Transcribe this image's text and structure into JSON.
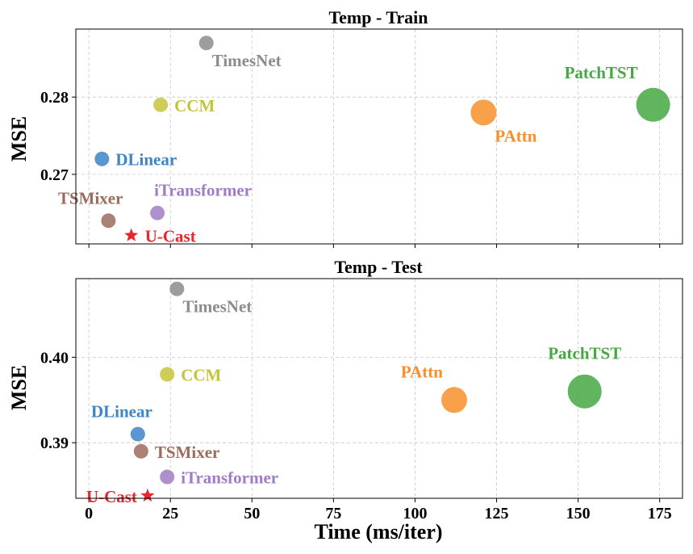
{
  "chart_data": [
    {
      "type": "scatter",
      "title": "Temp - Train",
      "ylabel": "MSE",
      "xlabel": "",
      "xlim": [
        -4,
        182
      ],
      "ylim": [
        0.261,
        0.2888
      ],
      "xticks": [
        0,
        25,
        50,
        75,
        100,
        125,
        150,
        175
      ],
      "yticks": [
        0.27,
        0.28
      ],
      "ytick_labels": [
        "0.27",
        "0.28"
      ],
      "grid": true,
      "points": [
        {
          "name": "TimesNet",
          "x": 36,
          "y": 0.287,
          "size": "small",
          "color": "#8c8c8c",
          "label_pos": "below-right",
          "marker": "circle"
        },
        {
          "name": "CCM",
          "x": 22,
          "y": 0.279,
          "size": "small",
          "color": "#c4c43a",
          "label_pos": "right",
          "marker": "circle"
        },
        {
          "name": "DLinear",
          "x": 4,
          "y": 0.272,
          "size": "small",
          "color": "#3d85c6",
          "label_pos": "right",
          "marker": "circle"
        },
        {
          "name": "TSMixer",
          "x": 6,
          "y": 0.264,
          "size": "small",
          "color": "#9b6b5c",
          "label_pos": "above-left",
          "marker": "circle"
        },
        {
          "name": "iTransformer",
          "x": 21,
          "y": 0.265,
          "size": "small",
          "color": "#a07cc7",
          "label_pos": "above-right",
          "marker": "circle"
        },
        {
          "name": "U-Cast",
          "x": 13,
          "y": 0.2621,
          "size": "star",
          "color": "#e8262d",
          "label_pos": "right",
          "marker": "star"
        },
        {
          "name": "PAttn",
          "x": 121,
          "y": 0.278,
          "size": "medium",
          "color": "#f88f2b",
          "label_pos": "below-right",
          "marker": "circle"
        },
        {
          "name": "PatchTST",
          "x": 173,
          "y": 0.279,
          "size": "large",
          "color": "#46a843",
          "label_pos": "above-left",
          "marker": "circle"
        }
      ]
    },
    {
      "type": "scatter",
      "title": "Temp - Test",
      "ylabel": "MSE",
      "xlabel": "Time (ms/iter)",
      "xlim": [
        -4,
        182
      ],
      "ylim": [
        0.3835,
        0.4092
      ],
      "xticks": [
        0,
        25,
        50,
        75,
        100,
        125,
        150,
        175
      ],
      "xtick_labels": [
        "0",
        "25",
        "50",
        "75",
        "100",
        "125",
        "150",
        "175"
      ],
      "yticks": [
        0.39,
        0.4
      ],
      "ytick_labels": [
        "0.39",
        "0.40"
      ],
      "grid": true,
      "points": [
        {
          "name": "TimesNet",
          "x": 27,
          "y": 0.408,
          "size": "small",
          "color": "#8c8c8c",
          "label_pos": "below-right",
          "marker": "circle"
        },
        {
          "name": "CCM",
          "x": 24,
          "y": 0.398,
          "size": "small",
          "color": "#c4c43a",
          "label_pos": "right",
          "marker": "circle"
        },
        {
          "name": "DLinear",
          "x": 15,
          "y": 0.391,
          "size": "small",
          "color": "#3d85c6",
          "label_pos": "above-left",
          "marker": "circle"
        },
        {
          "name": "TSMixer",
          "x": 16,
          "y": 0.389,
          "size": "small",
          "color": "#9b6b5c",
          "label_pos": "right",
          "marker": "circle"
        },
        {
          "name": "iTransformer",
          "x": 24,
          "y": 0.386,
          "size": "small",
          "color": "#a07cc7",
          "label_pos": "right",
          "marker": "circle"
        },
        {
          "name": "U-Cast",
          "x": 18,
          "y": 0.3838,
          "size": "star",
          "color": "#e8262d",
          "label_pos": "left",
          "marker": "star"
        },
        {
          "name": "PAttn",
          "x": 112,
          "y": 0.395,
          "size": "medium",
          "color": "#f88f2b",
          "label_pos": "above-left",
          "marker": "circle"
        },
        {
          "name": "PatchTST",
          "x": 152,
          "y": 0.396,
          "size": "large",
          "color": "#46a843",
          "label_pos": "above",
          "marker": "circle"
        }
      ]
    }
  ]
}
